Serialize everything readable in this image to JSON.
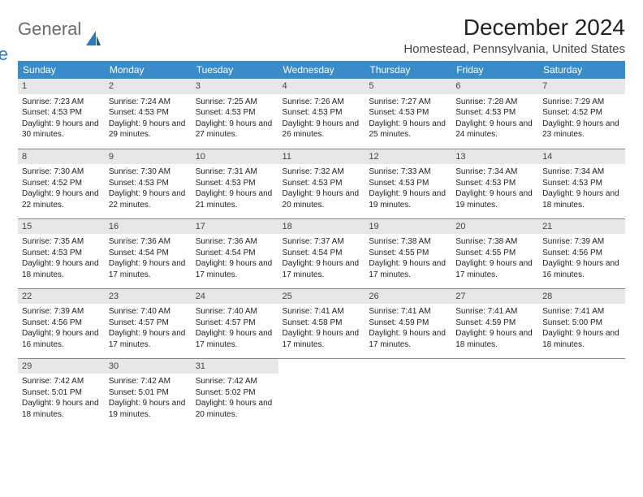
{
  "logo": {
    "word1": "General",
    "word2": "Blue"
  },
  "title": "December 2024",
  "location": "Homestead, Pennsylvania, United States",
  "colors": {
    "header_bg": "#3a8bc9",
    "header_fg": "#ffffff",
    "daynum_bg": "#e7e7e7",
    "daynum_fg": "#444444",
    "row_sep": "#888888",
    "logo_gray": "#6b6b6b",
    "logo_blue": "#2b7bbf",
    "sail_fill": "#2b7bbf"
  },
  "day_headers": [
    "Sunday",
    "Monday",
    "Tuesday",
    "Wednesday",
    "Thursday",
    "Friday",
    "Saturday"
  ],
  "weeks": [
    [
      {
        "n": "1",
        "sunrise": "Sunrise: 7:23 AM",
        "sunset": "Sunset: 4:53 PM",
        "daylight": "Daylight: 9 hours and 30 minutes."
      },
      {
        "n": "2",
        "sunrise": "Sunrise: 7:24 AM",
        "sunset": "Sunset: 4:53 PM",
        "daylight": "Daylight: 9 hours and 29 minutes."
      },
      {
        "n": "3",
        "sunrise": "Sunrise: 7:25 AM",
        "sunset": "Sunset: 4:53 PM",
        "daylight": "Daylight: 9 hours and 27 minutes."
      },
      {
        "n": "4",
        "sunrise": "Sunrise: 7:26 AM",
        "sunset": "Sunset: 4:53 PM",
        "daylight": "Daylight: 9 hours and 26 minutes."
      },
      {
        "n": "5",
        "sunrise": "Sunrise: 7:27 AM",
        "sunset": "Sunset: 4:53 PM",
        "daylight": "Daylight: 9 hours and 25 minutes."
      },
      {
        "n": "6",
        "sunrise": "Sunrise: 7:28 AM",
        "sunset": "Sunset: 4:53 PM",
        "daylight": "Daylight: 9 hours and 24 minutes."
      },
      {
        "n": "7",
        "sunrise": "Sunrise: 7:29 AM",
        "sunset": "Sunset: 4:52 PM",
        "daylight": "Daylight: 9 hours and 23 minutes."
      }
    ],
    [
      {
        "n": "8",
        "sunrise": "Sunrise: 7:30 AM",
        "sunset": "Sunset: 4:52 PM",
        "daylight": "Daylight: 9 hours and 22 minutes."
      },
      {
        "n": "9",
        "sunrise": "Sunrise: 7:30 AM",
        "sunset": "Sunset: 4:53 PM",
        "daylight": "Daylight: 9 hours and 22 minutes."
      },
      {
        "n": "10",
        "sunrise": "Sunrise: 7:31 AM",
        "sunset": "Sunset: 4:53 PM",
        "daylight": "Daylight: 9 hours and 21 minutes."
      },
      {
        "n": "11",
        "sunrise": "Sunrise: 7:32 AM",
        "sunset": "Sunset: 4:53 PM",
        "daylight": "Daylight: 9 hours and 20 minutes."
      },
      {
        "n": "12",
        "sunrise": "Sunrise: 7:33 AM",
        "sunset": "Sunset: 4:53 PM",
        "daylight": "Daylight: 9 hours and 19 minutes."
      },
      {
        "n": "13",
        "sunrise": "Sunrise: 7:34 AM",
        "sunset": "Sunset: 4:53 PM",
        "daylight": "Daylight: 9 hours and 19 minutes."
      },
      {
        "n": "14",
        "sunrise": "Sunrise: 7:34 AM",
        "sunset": "Sunset: 4:53 PM",
        "daylight": "Daylight: 9 hours and 18 minutes."
      }
    ],
    [
      {
        "n": "15",
        "sunrise": "Sunrise: 7:35 AM",
        "sunset": "Sunset: 4:53 PM",
        "daylight": "Daylight: 9 hours and 18 minutes."
      },
      {
        "n": "16",
        "sunrise": "Sunrise: 7:36 AM",
        "sunset": "Sunset: 4:54 PM",
        "daylight": "Daylight: 9 hours and 17 minutes."
      },
      {
        "n": "17",
        "sunrise": "Sunrise: 7:36 AM",
        "sunset": "Sunset: 4:54 PM",
        "daylight": "Daylight: 9 hours and 17 minutes."
      },
      {
        "n": "18",
        "sunrise": "Sunrise: 7:37 AM",
        "sunset": "Sunset: 4:54 PM",
        "daylight": "Daylight: 9 hours and 17 minutes."
      },
      {
        "n": "19",
        "sunrise": "Sunrise: 7:38 AM",
        "sunset": "Sunset: 4:55 PM",
        "daylight": "Daylight: 9 hours and 17 minutes."
      },
      {
        "n": "20",
        "sunrise": "Sunrise: 7:38 AM",
        "sunset": "Sunset: 4:55 PM",
        "daylight": "Daylight: 9 hours and 17 minutes."
      },
      {
        "n": "21",
        "sunrise": "Sunrise: 7:39 AM",
        "sunset": "Sunset: 4:56 PM",
        "daylight": "Daylight: 9 hours and 16 minutes."
      }
    ],
    [
      {
        "n": "22",
        "sunrise": "Sunrise: 7:39 AM",
        "sunset": "Sunset: 4:56 PM",
        "daylight": "Daylight: 9 hours and 16 minutes."
      },
      {
        "n": "23",
        "sunrise": "Sunrise: 7:40 AM",
        "sunset": "Sunset: 4:57 PM",
        "daylight": "Daylight: 9 hours and 17 minutes."
      },
      {
        "n": "24",
        "sunrise": "Sunrise: 7:40 AM",
        "sunset": "Sunset: 4:57 PM",
        "daylight": "Daylight: 9 hours and 17 minutes."
      },
      {
        "n": "25",
        "sunrise": "Sunrise: 7:41 AM",
        "sunset": "Sunset: 4:58 PM",
        "daylight": "Daylight: 9 hours and 17 minutes."
      },
      {
        "n": "26",
        "sunrise": "Sunrise: 7:41 AM",
        "sunset": "Sunset: 4:59 PM",
        "daylight": "Daylight: 9 hours and 17 minutes."
      },
      {
        "n": "27",
        "sunrise": "Sunrise: 7:41 AM",
        "sunset": "Sunset: 4:59 PM",
        "daylight": "Daylight: 9 hours and 18 minutes."
      },
      {
        "n": "28",
        "sunrise": "Sunrise: 7:41 AM",
        "sunset": "Sunset: 5:00 PM",
        "daylight": "Daylight: 9 hours and 18 minutes."
      }
    ],
    [
      {
        "n": "29",
        "sunrise": "Sunrise: 7:42 AM",
        "sunset": "Sunset: 5:01 PM",
        "daylight": "Daylight: 9 hours and 18 minutes."
      },
      {
        "n": "30",
        "sunrise": "Sunrise: 7:42 AM",
        "sunset": "Sunset: 5:01 PM",
        "daylight": "Daylight: 9 hours and 19 minutes."
      },
      {
        "n": "31",
        "sunrise": "Sunrise: 7:42 AM",
        "sunset": "Sunset: 5:02 PM",
        "daylight": "Daylight: 9 hours and 20 minutes."
      },
      null,
      null,
      null,
      null
    ]
  ]
}
